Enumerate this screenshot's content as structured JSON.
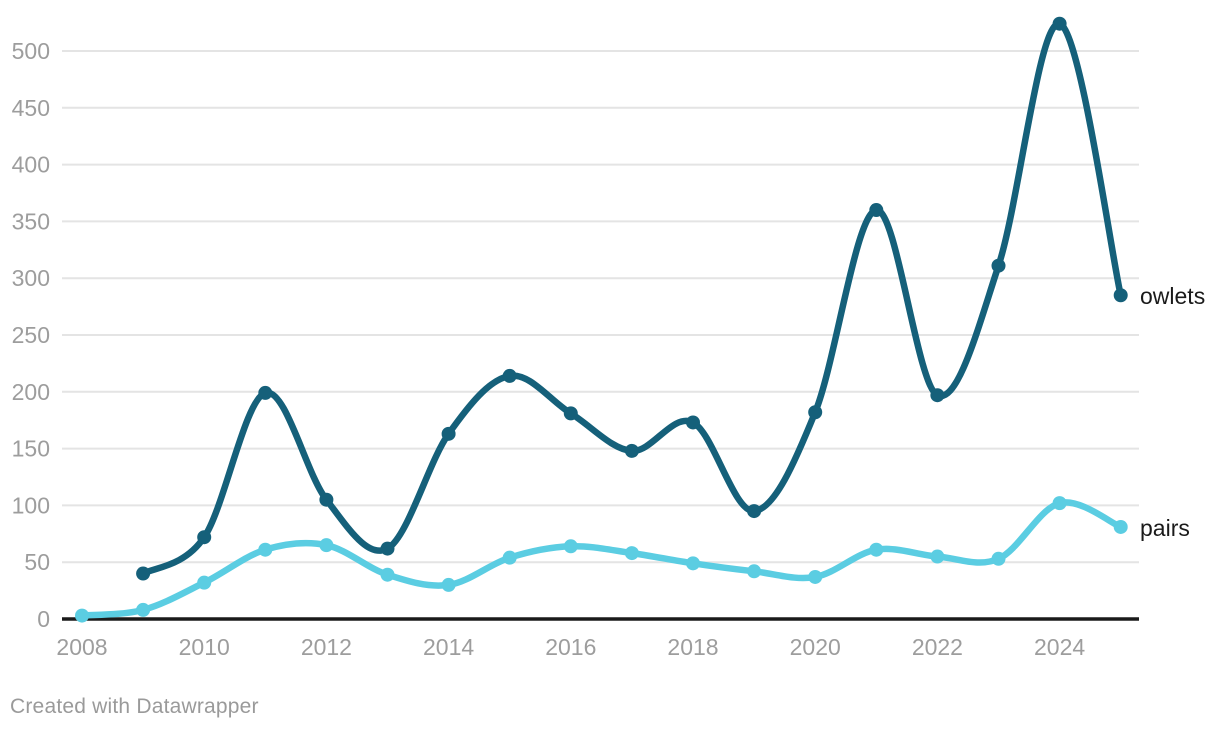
{
  "chart_data": {
    "type": "line",
    "title": "",
    "xlabel": "",
    "ylabel": "",
    "x": [
      2008,
      2009,
      2010,
      2011,
      2012,
      2013,
      2014,
      2015,
      2016,
      2017,
      2018,
      2019,
      2020,
      2021,
      2022,
      2023,
      2024,
      2025
    ],
    "series": [
      {
        "name": "owlets",
        "color": "#15607a",
        "values": [
          null,
          40,
          72,
          199,
          105,
          62,
          163,
          214,
          181,
          148,
          173,
          95,
          182,
          360,
          197,
          311,
          524,
          285
        ]
      },
      {
        "name": "pairs",
        "color": "#5bcde2",
        "values": [
          3,
          8,
          32,
          61,
          65,
          39,
          30,
          54,
          64,
          58,
          49,
          42,
          37,
          61,
          55,
          53,
          102,
          81
        ]
      }
    ],
    "xlim": [
      2008,
      2025
    ],
    "ylim": [
      0,
      500
    ],
    "x_ticks": [
      2008,
      2010,
      2012,
      2014,
      2016,
      2018,
      2020,
      2022,
      2024
    ],
    "y_ticks": [
      0,
      50,
      100,
      150,
      200,
      250,
      300,
      350,
      400,
      450,
      500
    ],
    "grid": true,
    "curve": "smooth",
    "legend_position": "end-of-line-labels"
  },
  "colors": {
    "owlets_line": "#15607a",
    "pairs_line": "#5bcde2",
    "gridline": "#e4e4e4",
    "axis_line": "#1a1a1a",
    "tick_label": "#9d9d9d",
    "series_label": "#1a1a1a",
    "credit_text": "#9a9a9a",
    "background": "#ffffff"
  },
  "footer": {
    "credit": "Created with Datawrapper"
  }
}
